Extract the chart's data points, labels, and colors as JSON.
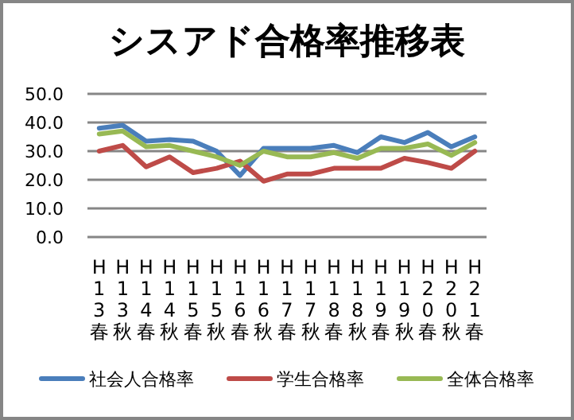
{
  "chart_data": {
    "type": "line",
    "title": "シスアド合格率推移表",
    "categories": [
      "H13春",
      "H13秋",
      "H14春",
      "H14秋",
      "H15春",
      "H15秋",
      "H16春",
      "H16秋",
      "H17春",
      "H17秋",
      "H18春",
      "H18秋",
      "H19春",
      "H19秋",
      "H20春",
      "H20秋",
      "H21春"
    ],
    "series": [
      {
        "name": "社会人合格率",
        "color": "#4a7ebb",
        "values": [
          38,
          39,
          33.5,
          34,
          33.5,
          30,
          21.5,
          31,
          31,
          31,
          32,
          29.5,
          35,
          33,
          36.5,
          31.5,
          35
        ]
      },
      {
        "name": "学生合格率",
        "color": "#be4b48",
        "values": [
          30,
          32,
          24.5,
          28,
          22.5,
          24,
          26.5,
          19.5,
          22,
          22,
          24,
          24,
          24,
          27.5,
          26,
          24,
          30
        ]
      },
      {
        "name": "全体合格率",
        "color": "#98b954",
        "values": [
          36,
          37,
          31.5,
          32,
          30,
          28,
          25,
          30,
          28,
          28,
          29.5,
          27.5,
          31,
          31,
          32.5,
          28.5,
          33
        ]
      }
    ],
    "ylim": [
      0,
      50
    ],
    "yticks": [
      {
        "value": 0,
        "label": "0.0"
      },
      {
        "value": 10,
        "label": "10.0"
      },
      {
        "value": 20,
        "label": "20.0"
      },
      {
        "value": 30,
        "label": "30.0"
      },
      {
        "value": 40,
        "label": "40.0"
      },
      {
        "value": 50,
        "label": "50.0"
      }
    ],
    "grid": "y",
    "legend": "bottom",
    "marker": "none",
    "line_style": "solid"
  }
}
